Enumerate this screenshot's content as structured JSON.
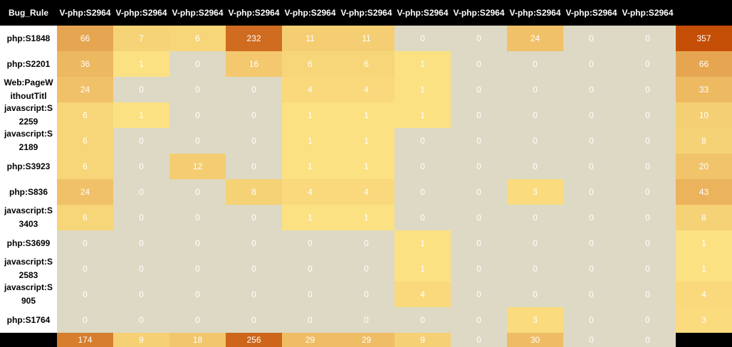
{
  "chart_data": {
    "type": "heatmap",
    "corner_label": "Bug_Rule",
    "columns": [
      "V-php:S2964",
      "V-php:S2964",
      "V-php:S2964",
      "V-php:S2964",
      "V-php:S2964",
      "V-php:S2964",
      "V-php:S2964",
      "V-php:S2964",
      "V-php:S2964",
      "V-php:S2964",
      "V-php:S2964"
    ],
    "rows": [
      "php:S1848",
      "php:S2201",
      "Web:PageWithoutTitl",
      "javascript:S2259",
      "javascript:S2189",
      "php:S3923",
      "php:S836",
      "javascript:S3403",
      "php:S3699",
      "javascript:S2583",
      "javascript:S905",
      "php:S1764"
    ],
    "values": [
      [
        66,
        7,
        6,
        232,
        11,
        11,
        0,
        0,
        24,
        0,
        0
      ],
      [
        36,
        1,
        0,
        16,
        6,
        6,
        1,
        0,
        0,
        0,
        0
      ],
      [
        24,
        0,
        0,
        0,
        4,
        4,
        1,
        0,
        0,
        0,
        0
      ],
      [
        6,
        1,
        0,
        0,
        1,
        1,
        1,
        0,
        0,
        0,
        0
      ],
      [
        6,
        0,
        0,
        0,
        1,
        1,
        0,
        0,
        0,
        0,
        0
      ],
      [
        6,
        0,
        12,
        0,
        1,
        1,
        0,
        0,
        0,
        0,
        0
      ],
      [
        24,
        0,
        0,
        8,
        4,
        4,
        0,
        0,
        3,
        0,
        0
      ],
      [
        6,
        0,
        0,
        0,
        1,
        1,
        0,
        0,
        0,
        0,
        0
      ],
      [
        0,
        0,
        0,
        0,
        0,
        0,
        1,
        0,
        0,
        0,
        0
      ],
      [
        0,
        0,
        0,
        0,
        0,
        0,
        1,
        0,
        0,
        0,
        0
      ],
      [
        0,
        0,
        0,
        0,
        0,
        0,
        4,
        0,
        0,
        0,
        0
      ],
      [
        0,
        0,
        0,
        0,
        0,
        0,
        0,
        0,
        3,
        0,
        0
      ]
    ],
    "row_totals": [
      357,
      66,
      33,
      10,
      8,
      20,
      43,
      8,
      1,
      1,
      4,
      3
    ],
    "column_totals": [
      174,
      9,
      18,
      256,
      29,
      29,
      9,
      0,
      30,
      0,
      0
    ],
    "colors": {
      "zero": "#ddd9c4",
      "low": "#ffe98a",
      "high": "#c44e06",
      "header_bg": "#000000",
      "header_text": "#ffffff",
      "row_label_bg": "#ffffff",
      "row_label_text": "#000000"
    }
  }
}
